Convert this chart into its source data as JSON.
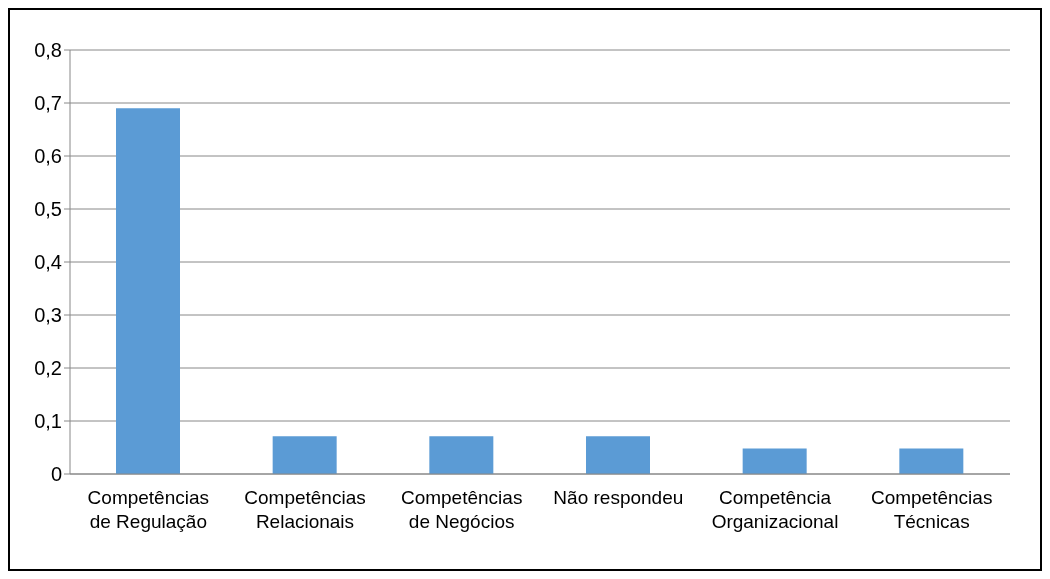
{
  "chart_data": {
    "type": "bar",
    "categories": [
      "Competências de Regulação",
      "Competências Relacionais",
      "Competências de Negócios",
      "Não respondeu",
      "Competência Organizacional",
      "Competências Técnicas"
    ],
    "values": [
      0.69,
      0.071,
      0.071,
      0.071,
      0.048,
      0.048
    ],
    "color": "#5b9bd5",
    "ylim": [
      0,
      0.8
    ],
    "yticks": [
      {
        "value": 0,
        "label": "0"
      },
      {
        "value": 0.1,
        "label": "0,1"
      },
      {
        "value": 0.2,
        "label": "0,2"
      },
      {
        "value": 0.3,
        "label": "0,3"
      },
      {
        "value": 0.4,
        "label": "0,4"
      },
      {
        "value": 0.5,
        "label": "0,5"
      },
      {
        "value": 0.6,
        "label": "0,6"
      },
      {
        "value": 0.7,
        "label": "0,7"
      },
      {
        "value": 0.8,
        "label": "0,8"
      }
    ],
    "grid": "y"
  }
}
